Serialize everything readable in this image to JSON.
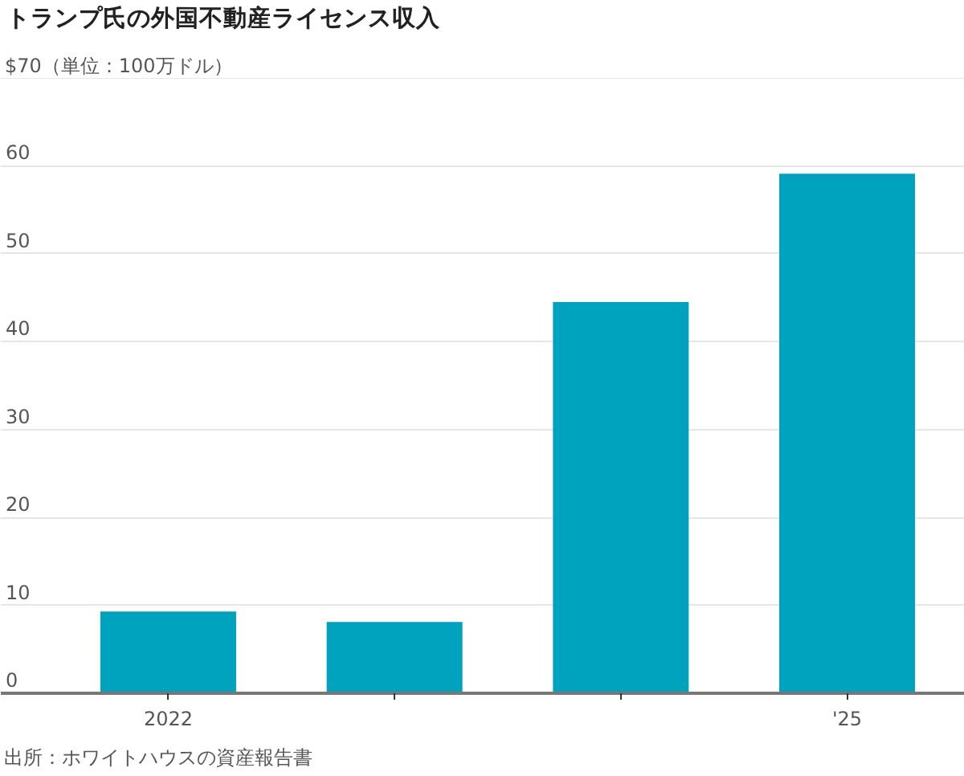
{
  "chart_data": {
    "type": "bar",
    "title": "トランプ氏の外国不動産ライセンス収入",
    "categories": [
      "2022",
      null,
      null,
      "'25"
    ],
    "values": [
      9.3,
      8.1,
      44.5,
      59.1
    ],
    "color": "#00a3bd",
    "ylim": [
      0,
      70
    ],
    "yticks": [
      0,
      10,
      20,
      30,
      40,
      50,
      60,
      {
        "value": 70,
        "label": "$70（単位：100万ドル）"
      }
    ],
    "grid": "y",
    "annotations": [
      "出所：ホワイトハウスの資産報告書"
    ]
  }
}
